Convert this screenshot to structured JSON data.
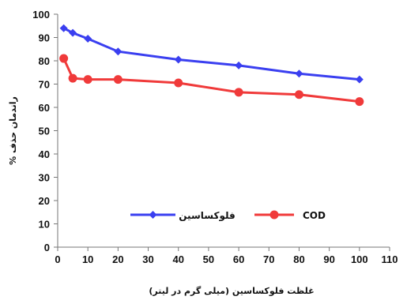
{
  "chart_data": {
    "type": "line",
    "xlabel": "غلظت فلوکساسین (میلی گرم در لیتر)",
    "ylabel": "راندمان حذف %",
    "xlim": [
      0,
      110
    ],
    "ylim": [
      0,
      100
    ],
    "xticks": [
      0,
      10,
      20,
      30,
      40,
      50,
      60,
      70,
      80,
      90,
      100,
      110
    ],
    "yticks": [
      0,
      10,
      20,
      30,
      40,
      50,
      60,
      70,
      80,
      90,
      100
    ],
    "grid": false,
    "legend_position": "lower-center",
    "series": [
      {
        "name": "فلوکساسین",
        "color": "#3a3ff0",
        "marker": "diamond",
        "x": [
          2,
          5,
          10,
          20,
          40,
          60,
          80,
          100
        ],
        "y": [
          94,
          92,
          89.5,
          84,
          80.5,
          78,
          74.5,
          72
        ]
      },
      {
        "name": "COD",
        "color": "#f03a3a",
        "marker": "circle",
        "x": [
          2,
          5,
          10,
          20,
          40,
          60,
          80,
          100
        ],
        "y": [
          81,
          72.5,
          72,
          72,
          70.5,
          66.5,
          65.5,
          62.5
        ]
      }
    ]
  }
}
